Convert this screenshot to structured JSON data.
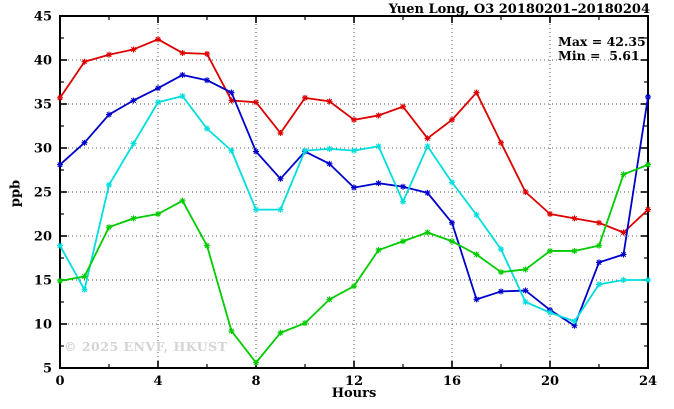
{
  "header": {
    "title": "Yuen Long, O3 20180201–20180204"
  },
  "chart_data": {
    "type": "line",
    "title": "Yuen Long, O3 20180201–20180204",
    "xlabel": "Hours",
    "ylabel": "ppb",
    "xlim": [
      0,
      24
    ],
    "ylim": [
      5,
      45
    ],
    "xticks": [
      0,
      4,
      8,
      12,
      16,
      20,
      24
    ],
    "yticks": [
      5,
      10,
      15,
      20,
      25,
      30,
      35,
      40,
      45
    ],
    "x_minor_step": 2,
    "y_minor_step": 2.5,
    "grid": true,
    "legend_position": "top-right-inside",
    "legend": {
      "max_label": "Max = 42.35",
      "min_label": "Min =  5.61"
    },
    "stats": {
      "max": 42.35,
      "min": 5.61
    },
    "watermark": "© 2025 ENVF, HKUST",
    "x": [
      0,
      1,
      2,
      3,
      4,
      5,
      6,
      7,
      8,
      9,
      10,
      11,
      12,
      13,
      14,
      15,
      16,
      17,
      18,
      19,
      20,
      21,
      22,
      23,
      24
    ],
    "series": [
      {
        "name": "series-red",
        "color": "#dd0000",
        "values": [
          35.7,
          39.8,
          40.6,
          41.2,
          42.35,
          40.8,
          40.7,
          35.4,
          35.2,
          31.7,
          35.7,
          35.3,
          33.2,
          33.7,
          34.7,
          31.1,
          33.2,
          36.3,
          30.6,
          25.0,
          22.5,
          22.0,
          21.5,
          20.4,
          23.0
        ]
      },
      {
        "name": "series-blue",
        "color": "#0000cc",
        "values": [
          28.1,
          30.6,
          33.8,
          35.4,
          36.8,
          38.3,
          37.7,
          36.3,
          29.6,
          26.5,
          29.6,
          28.2,
          25.5,
          26.0,
          25.6,
          24.9,
          21.5,
          12.8,
          13.7,
          13.8,
          11.6,
          9.8,
          17.0,
          17.9,
          35.8
        ]
      },
      {
        "name": "series-cyan",
        "color": "#00dede",
        "values": [
          18.9,
          13.9,
          25.8,
          30.5,
          35.2,
          35.9,
          32.2,
          29.7,
          23.0,
          23.0,
          29.7,
          29.9,
          29.7,
          30.2,
          23.9,
          30.2,
          26.1,
          22.4,
          18.5,
          12.5,
          11.3,
          10.3,
          14.5,
          15.0,
          15.0
        ]
      },
      {
        "name": "series-green",
        "color": "#00cc00",
        "values": [
          14.9,
          15.4,
          21.0,
          22.0,
          22.5,
          24.0,
          18.9,
          9.2,
          5.61,
          9.0,
          10.1,
          12.8,
          14.3,
          18.4,
          19.4,
          20.4,
          19.4,
          17.9,
          15.9,
          16.2,
          18.3,
          18.3,
          18.9,
          27.0,
          28.1
        ]
      }
    ]
  }
}
